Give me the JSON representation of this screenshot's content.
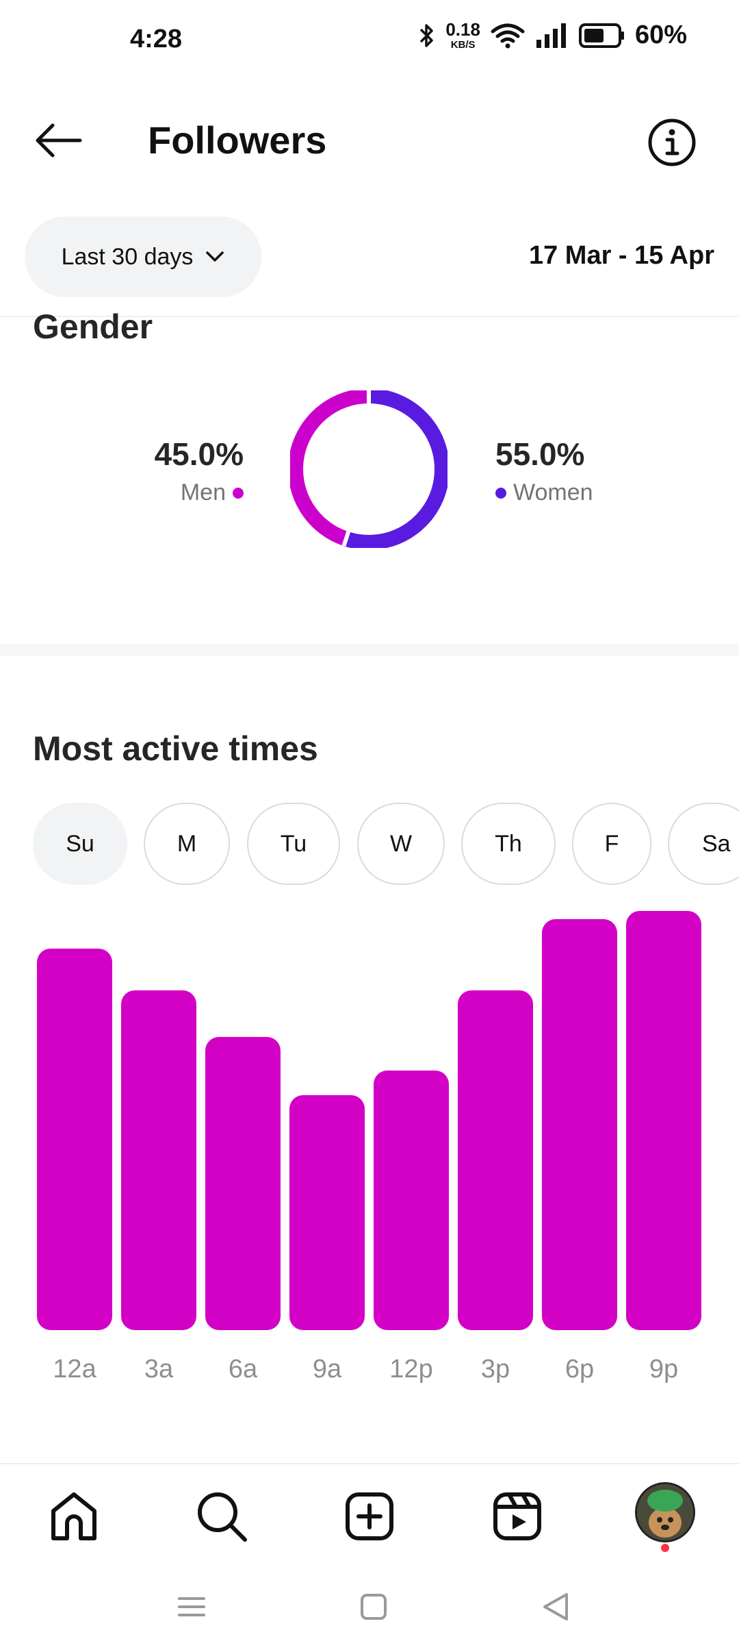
{
  "status_bar": {
    "time": "4:28",
    "network_speed_value": "0.18",
    "network_speed_unit": "KB/S",
    "battery": "60%",
    "icons": [
      "bluetooth-icon",
      "wifi-icon",
      "signal-icon",
      "battery-icon"
    ]
  },
  "header": {
    "title": "Followers",
    "back_icon": "back-arrow-icon",
    "info_icon": "info-icon"
  },
  "filter": {
    "range_label": "Last 30 days",
    "date_range": "17 Mar - 15 Apr"
  },
  "gender": {
    "title": "Gender",
    "men_percent": "45.0%",
    "men_label": "Men",
    "women_percent": "55.0%",
    "women_label": "Women",
    "men_color": "#cc00cc",
    "women_color": "#5a1be0"
  },
  "active_times": {
    "title": "Most active times",
    "days": [
      "Su",
      "M",
      "Tu",
      "W",
      "Th",
      "F",
      "Sa"
    ],
    "selected_day": "Su",
    "bar_color": "#d300c5"
  },
  "chart_data": {
    "type": "bar",
    "categories": [
      "12a",
      "3a",
      "6a",
      "9a",
      "12p",
      "3p",
      "6p",
      "9p"
    ],
    "values": [
      91,
      81,
      70,
      56,
      62,
      81,
      98,
      100
    ],
    "ylim": [
      0,
      100
    ]
  },
  "bottom_nav": {
    "items": [
      "home-icon",
      "search-icon",
      "create-icon",
      "reels-icon",
      "profile-avatar"
    ]
  },
  "system_nav": {
    "items": [
      "menu-icon",
      "home-square-icon",
      "back-triangle-icon"
    ]
  }
}
